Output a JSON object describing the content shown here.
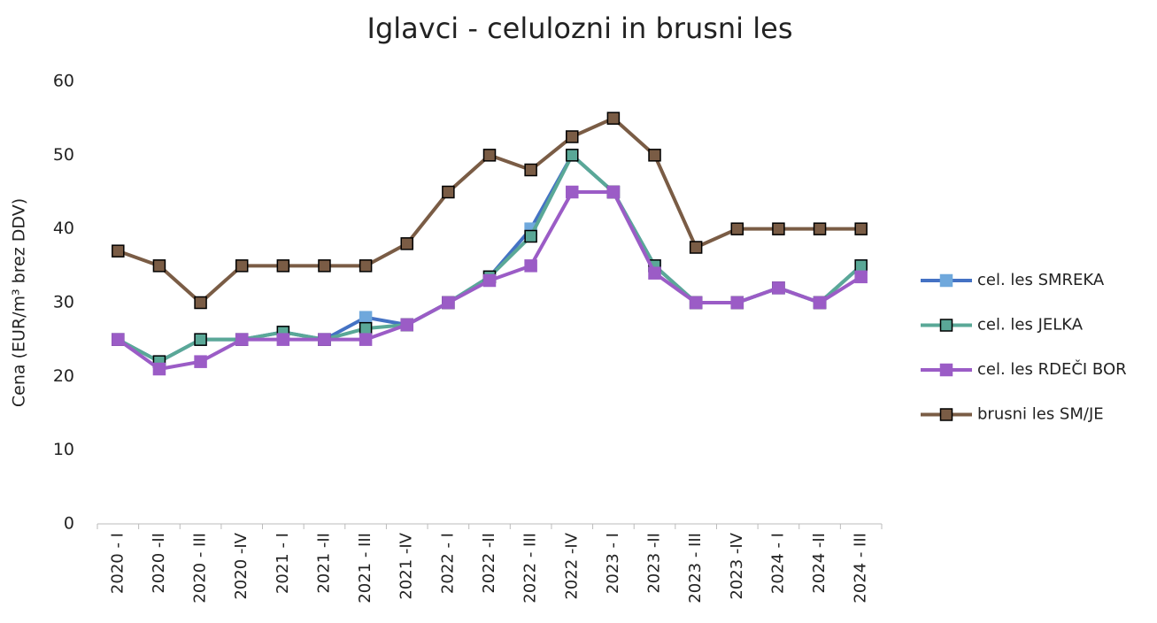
{
  "chart_data": {
    "type": "line",
    "title": "Iglavci - celulozni in brusni les",
    "y_label": "Cena (EUR/m³ brez DDV)",
    "categories": [
      "2020 - I",
      "2020 -II",
      "2020 - III",
      "2020 -IV",
      "2021 - I",
      "2021 -II",
      "2021 - III",
      "2021 -IV",
      "2022 - I",
      "2022 -II",
      "2022 - III",
      "2022 -IV",
      "2023 - I",
      "2023 -II",
      "2023 - III",
      "2023 -IV",
      "2024 - I",
      "2024 -II",
      "2024 - III"
    ],
    "series": [
      {
        "name": "cel. les SMREKA",
        "color": "#4472c4",
        "marker_color": "#6fa8dc",
        "marker_edge": "#6fa8dc",
        "values": [
          25,
          22,
          25,
          25,
          26,
          25,
          28,
          27,
          30,
          33.5,
          40,
          50,
          45,
          35,
          30,
          30,
          32,
          30,
          35
        ]
      },
      {
        "name": "cel. les JELKA",
        "color": "#5aa897",
        "marker_color": "#5aa897",
        "marker_edge": "#000000",
        "values": [
          25,
          22,
          25,
          25,
          26,
          25,
          26.5,
          27,
          30,
          33.5,
          39,
          50,
          45,
          35,
          30,
          30,
          32,
          30,
          35
        ]
      },
      {
        "name": "cel. les RDEČI BOR",
        "color": "#9b5cc6",
        "marker_color": "#9b5cc6",
        "marker_edge": "#9b5cc6",
        "values": [
          25,
          21,
          22,
          25,
          25,
          25,
          25,
          27,
          30,
          33,
          35,
          45,
          45,
          34,
          30,
          30,
          32,
          30,
          33.5
        ]
      },
      {
        "name": "brusni les SM/JE",
        "color": "#7a5c45",
        "marker_color": "#7a5c45",
        "marker_edge": "#000000",
        "values": [
          37,
          35,
          30,
          35,
          35,
          35,
          35,
          38,
          45,
          50,
          48,
          52.5,
          55,
          50,
          37.5,
          40,
          40,
          40,
          40
        ]
      }
    ],
    "ylim": [
      0,
      60
    ],
    "yticks": [
      0,
      10,
      20,
      30,
      40,
      50,
      60
    ],
    "grid": false,
    "legend": "right"
  }
}
